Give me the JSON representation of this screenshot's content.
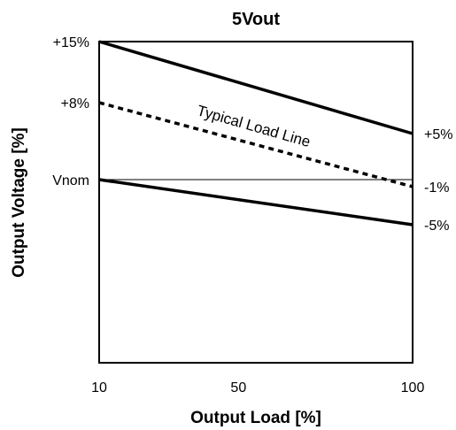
{
  "chart_data": {
    "type": "line",
    "title": "5Vout",
    "xlabel": "Output Load [%]",
    "ylabel": "Output Voltage [%]",
    "x_ticks": [
      10,
      50,
      100
    ],
    "x_tick_labels": [
      "10",
      "50",
      "100"
    ],
    "xlim": [
      10,
      100
    ],
    "ylim": [
      -50,
      15
    ],
    "grid": false,
    "left_y_labels": [
      {
        "value": 15,
        "text": "+15%"
      },
      {
        "value": 8,
        "text": "+8%"
      },
      {
        "value": 0,
        "text": "Vnom"
      }
    ],
    "right_y_labels": [
      {
        "value": 5,
        "text": "+5%"
      },
      {
        "value": -1,
        "text": "-1%"
      },
      {
        "value": -5,
        "text": "-5%"
      }
    ],
    "series": [
      {
        "x": [
          10,
          100
        ],
        "y": [
          15,
          5
        ],
        "style": "solid",
        "width": 3.5,
        "color": "#000000"
      },
      {
        "name": "Typical Load Line",
        "x": [
          10,
          100
        ],
        "y": [
          8,
          -1
        ],
        "style": "dotted",
        "width": 3.5,
        "color": "#000000"
      },
      {
        "x": [
          10,
          100
        ],
        "y": [
          0,
          -5
        ],
        "style": "solid",
        "width": 3.5,
        "color": "#000000"
      },
      {
        "x": [
          10,
          100
        ],
        "y": [
          0,
          0
        ],
        "style": "solid",
        "width": 1,
        "color": "#000000"
      }
    ],
    "annotations": [
      {
        "text": "Typical Load Line",
        "x": 50,
        "y": 4.5,
        "rotation": 16
      }
    ]
  }
}
